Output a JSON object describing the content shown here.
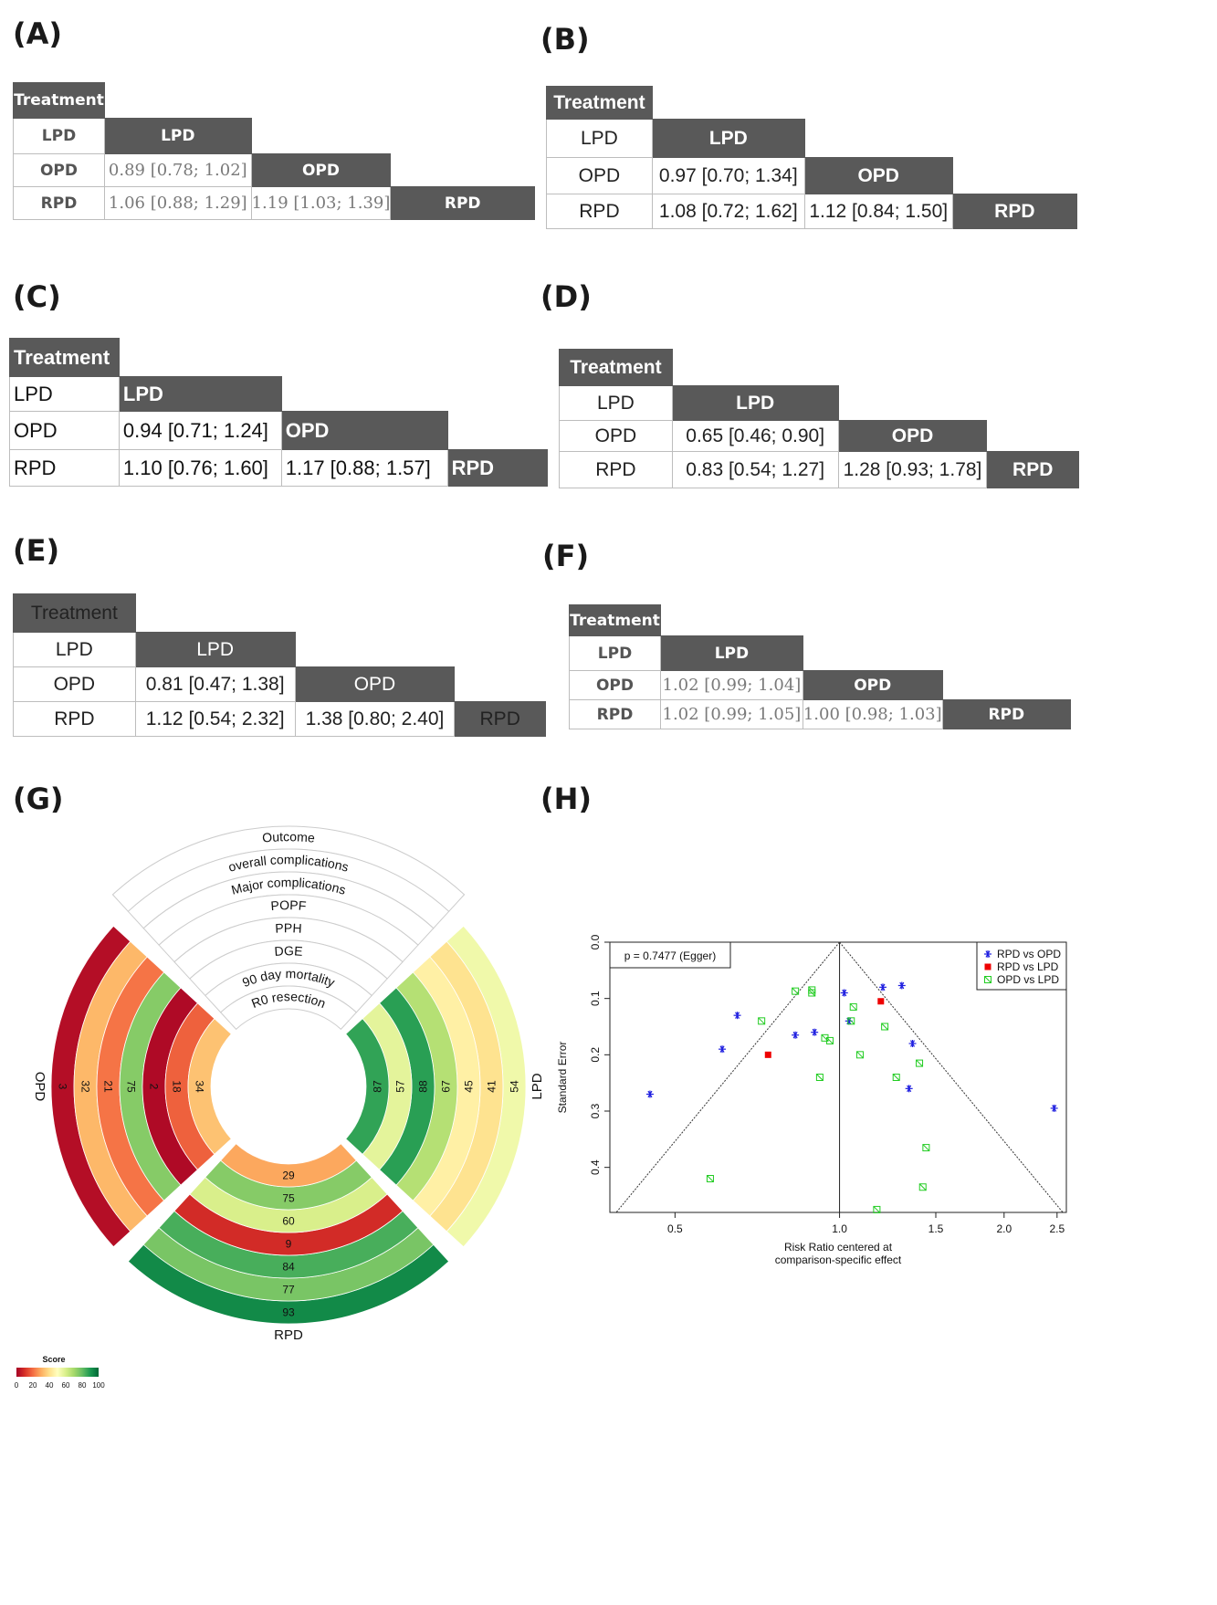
{
  "panel_labels": {
    "A": "(A)",
    "B": "(B)",
    "C": "(C)",
    "D": "(D)",
    "E": "(E)",
    "F": "(F)",
    "G": "(G)",
    "H": "(H)"
  },
  "tables": {
    "A": {
      "corner": "Treatment",
      "col1": "LPD",
      "col2": "OPD",
      "col3": "RPD",
      "row1": "LPD",
      "row2": "OPD",
      "row3": "RPD",
      "opd_lpd": "0.89 [0.78; 1.02]",
      "rpd_lpd": "1.06 [0.88; 1.29]",
      "rpd_opd": "1.19 [1.03; 1.39]"
    },
    "B": {
      "corner": "Treatment",
      "col1": "LPD",
      "col2": "OPD",
      "col3": "RPD",
      "row1": "LPD",
      "row2": "OPD",
      "row3": "RPD",
      "opd_lpd": "0.97 [0.70; 1.34]",
      "rpd_lpd": "1.08 [0.72; 1.62]",
      "rpd_opd": "1.12 [0.84; 1.50]"
    },
    "C": {
      "corner": "Treatment",
      "col1": "LPD",
      "col2": "OPD",
      "col3": "RPD",
      "row1": "LPD",
      "row2": "OPD",
      "row3": "RPD",
      "opd_lpd": "0.94 [0.71; 1.24]",
      "rpd_lpd": "1.10 [0.76; 1.60]",
      "rpd_opd": "1.17 [0.88; 1.57]"
    },
    "D": {
      "corner": "Treatment",
      "col1": "LPD",
      "col2": "OPD",
      "col3": "RPD",
      "row1": "LPD",
      "row2": "OPD",
      "row3": "RPD",
      "opd_lpd": "0.65 [0.46; 0.90]",
      "rpd_lpd": "0.83 [0.54; 1.27]",
      "rpd_opd": "1.28 [0.93; 1.78]"
    },
    "E": {
      "corner": "Treatment",
      "col1": "LPD",
      "col2": "OPD",
      "col3": "RPD",
      "row1": "LPD",
      "row2": "OPD",
      "row3": "RPD",
      "opd_lpd": "0.81 [0.47; 1.38]",
      "rpd_lpd": "1.12 [0.54; 2.32]",
      "rpd_opd": "1.38 [0.80; 2.40]"
    },
    "F": {
      "corner": "Treatment",
      "col1": "LPD",
      "col2": "OPD",
      "col3": "RPD",
      "row1": "LPD",
      "row2": "OPD",
      "row3": "RPD",
      "opd_lpd": "1.02 [0.99; 1.04]",
      "rpd_lpd": "1.02 [0.99; 1.05]",
      "rpd_opd": "1.00 [0.98; 1.03]"
    }
  },
  "chart_data": [
    {
      "type": "heatmap",
      "subtype": "circular",
      "outcomes_label": "Outcome",
      "outcomes": [
        "overall complications",
        "Major complications",
        "POPF",
        "PPH",
        "DGE",
        "90 day mortality",
        "R0 resection"
      ],
      "treatments": [
        "OPD",
        "LPD",
        "RPD"
      ],
      "scores": {
        "OPD": [
          3,
          32,
          21,
          75,
          2,
          18,
          34
        ],
        "LPD": [
          54,
          41,
          45,
          67,
          88,
          57,
          87
        ],
        "RPD": [
          93,
          77,
          84,
          9,
          60,
          75,
          29
        ]
      },
      "legend": {
        "title": "Score",
        "ticks": [
          "0",
          "20",
          "40",
          "60",
          "80",
          "100"
        ],
        "colors": [
          "#a50026",
          "#d73027",
          "#f46d43",
          "#fdae61",
          "#fee08b",
          "#ffffbf",
          "#d9ef8b",
          "#a6d96a",
          "#66bd63",
          "#1a9850",
          "#006837"
        ]
      }
    },
    {
      "type": "scatter",
      "subtype": "funnel",
      "annotation": "p = 0.7477 (Egger)",
      "xlabel": "Risk Ratio centered at comparison-specific effect",
      "xlabel_lines": [
        "Risk Ratio centered at",
        "comparison-specific effect"
      ],
      "ylabel": "Standard Error",
      "x_scale": "log",
      "xlim": [
        0.38,
        2.6
      ],
      "ylim": [
        0.48,
        0.0
      ],
      "x_ticks": [
        "0.5",
        "1.0",
        "1.5",
        "2.0",
        "2.5"
      ],
      "y_ticks": [
        "0.0",
        "0.1",
        "0.2",
        "0.3",
        "0.4"
      ],
      "legend_position": "top-right",
      "series": [
        {
          "name": "RPD vs OPD",
          "color": "#1f1fe0",
          "marker": "asterisk",
          "points": [
            [
              0.45,
              0.27
            ],
            [
              0.61,
              0.19
            ],
            [
              0.65,
              0.13
            ],
            [
              0.83,
              0.165
            ],
            [
              0.9,
              0.16
            ],
            [
              1.02,
              0.09
            ],
            [
              1.04,
              0.14
            ],
            [
              1.2,
              0.08
            ],
            [
              1.3,
              0.077
            ],
            [
              1.36,
              0.18
            ],
            [
              1.34,
              0.26
            ],
            [
              2.47,
              0.295
            ]
          ]
        },
        {
          "name": "RPD vs LPD",
          "color": "#ee0000",
          "marker": "square",
          "points": [
            [
              0.74,
              0.2
            ],
            [
              1.19,
              0.105
            ]
          ]
        },
        {
          "name": "OPD vs LPD",
          "color": "#22cc22",
          "marker": "square-open",
          "points": [
            [
              0.58,
              0.42
            ],
            [
              0.72,
              0.14
            ],
            [
              0.83,
              0.087
            ],
            [
              0.89,
              0.085
            ],
            [
              0.89,
              0.09
            ],
            [
              0.92,
              0.24
            ],
            [
              0.94,
              0.17
            ],
            [
              0.96,
              0.175
            ],
            [
              1.06,
              0.115
            ],
            [
              1.05,
              0.14
            ],
            [
              1.09,
              0.2
            ],
            [
              1.21,
              0.15
            ],
            [
              1.27,
              0.24
            ],
            [
              1.4,
              0.215
            ],
            [
              1.44,
              0.365
            ],
            [
              1.42,
              0.435
            ],
            [
              1.17,
              0.475
            ]
          ]
        }
      ]
    }
  ]
}
